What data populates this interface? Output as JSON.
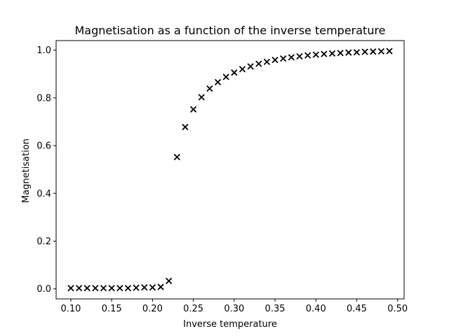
{
  "chart_data": {
    "type": "scatter",
    "title": "Magnetisation as a function of the inverse temperature",
    "xlabel": "Inverse temperature",
    "ylabel": "Magnetisation",
    "xlim": [
      0.082,
      0.508
    ],
    "ylim": [
      -0.042,
      1.04
    ],
    "grid": false,
    "marker": "x",
    "marker_color": "#000000",
    "xticks": [
      0.1,
      0.15,
      0.2,
      0.25,
      0.3,
      0.35,
      0.4,
      0.45,
      0.5
    ],
    "xtick_labels": [
      "0.10",
      "0.15",
      "0.20",
      "0.25",
      "0.30",
      "0.35",
      "0.40",
      "0.45",
      "0.50"
    ],
    "yticks": [
      0.0,
      0.2,
      0.4,
      0.6,
      0.8,
      1.0
    ],
    "ytick_labels": [
      "0.0",
      "0.2",
      "0.4",
      "0.6",
      "0.8",
      "1.0"
    ],
    "x": [
      0.1,
      0.11,
      0.12,
      0.13,
      0.14,
      0.15,
      0.16,
      0.17,
      0.18,
      0.19,
      0.2,
      0.21,
      0.22,
      0.23,
      0.24,
      0.25,
      0.26,
      0.27,
      0.28,
      0.29,
      0.3,
      0.31,
      0.32,
      0.33,
      0.34,
      0.35,
      0.36,
      0.37,
      0.38,
      0.39,
      0.4,
      0.41,
      0.42,
      0.43,
      0.44,
      0.45,
      0.46,
      0.47,
      0.48,
      0.49
    ],
    "y": [
      0.003,
      0.003,
      0.003,
      0.003,
      0.003,
      0.003,
      0.003,
      0.003,
      0.005,
      0.006,
      0.006,
      0.008,
      0.033,
      0.552,
      0.678,
      0.752,
      0.803,
      0.839,
      0.866,
      0.888,
      0.906,
      0.92,
      0.932,
      0.943,
      0.951,
      0.959,
      0.965,
      0.97,
      0.974,
      0.978,
      0.981,
      0.984,
      0.986,
      0.988,
      0.99,
      0.991,
      0.993,
      0.994,
      0.995,
      0.996
    ]
  }
}
